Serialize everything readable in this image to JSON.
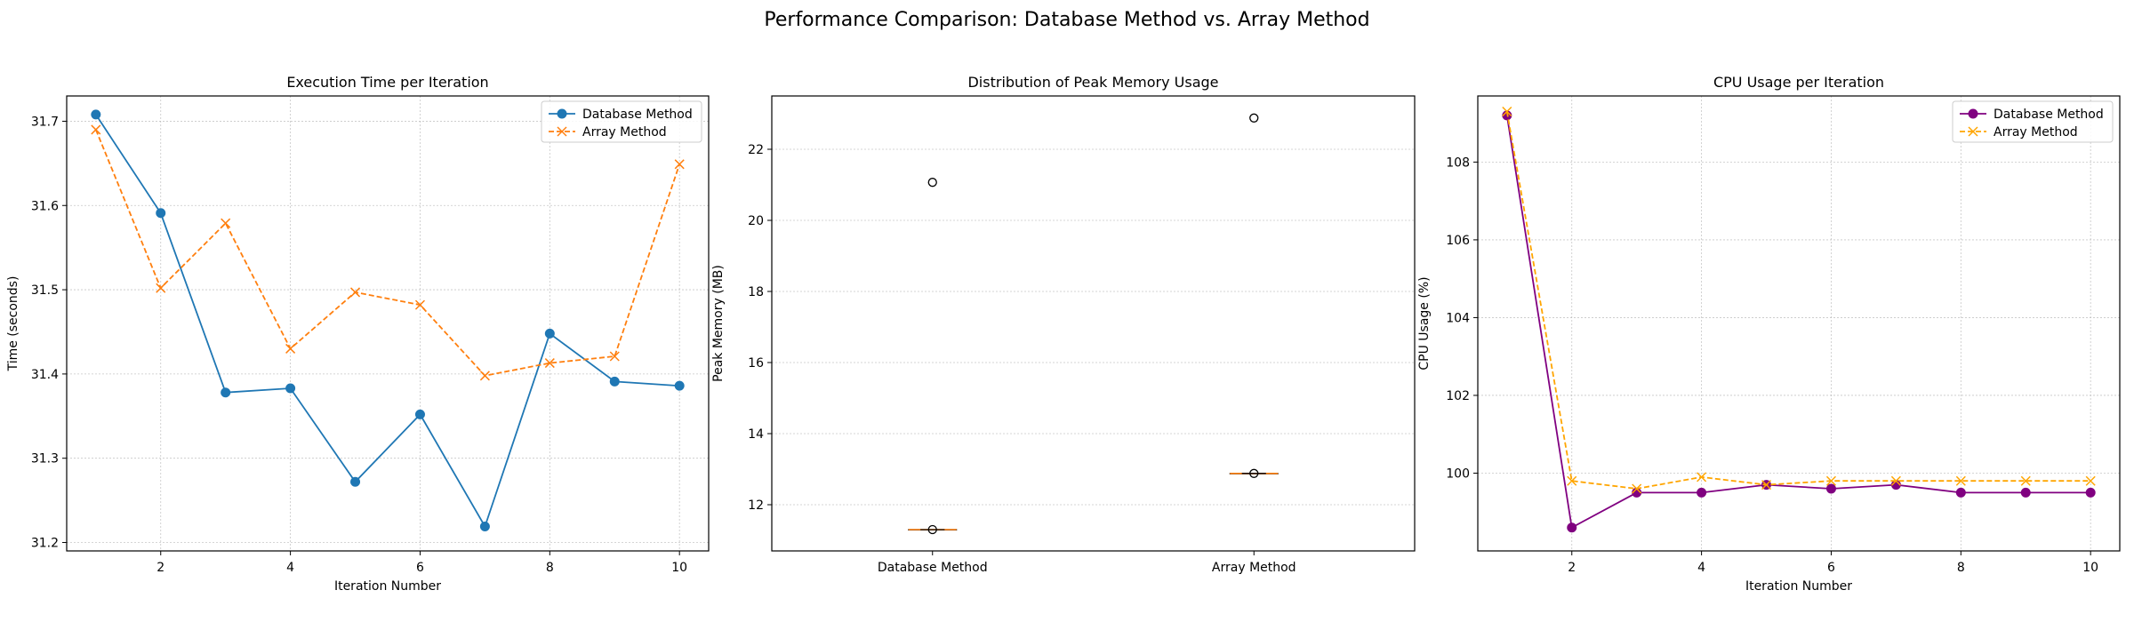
{
  "figure": {
    "suptitle": "Performance Comparison: Database Method vs. Array Method"
  },
  "chart_data": [
    {
      "type": "line",
      "title": "Execution Time per Iteration",
      "xlabel": "Iteration Number",
      "ylabel": "Time (seconds)",
      "xlim": [
        0.55,
        10.45
      ],
      "ylim": [
        31.19,
        31.73
      ],
      "xticks": [
        2,
        4,
        6,
        8,
        10
      ],
      "yticks": [
        31.2,
        31.3,
        31.4,
        31.5,
        31.6,
        31.7
      ],
      "ytick_format": 1,
      "grid": true,
      "legend": "upper right",
      "x": [
        1,
        2,
        3,
        4,
        5,
        6,
        7,
        8,
        9,
        10
      ],
      "series": [
        {
          "name": "Database Method",
          "color": "#1f77b4",
          "marker": "circle",
          "dash": "solid",
          "values": [
            31.708,
            31.591,
            31.378,
            31.383,
            31.272,
            31.352,
            31.219,
            31.448,
            31.391,
            31.386
          ]
        },
        {
          "name": "Array Method",
          "color": "#ff7f0e",
          "marker": "x",
          "dash": "dashed",
          "values": [
            31.69,
            31.502,
            31.579,
            31.43,
            31.497,
            31.482,
            31.398,
            31.413,
            31.421,
            31.649
          ]
        }
      ]
    },
    {
      "type": "box",
      "title": "Distribution of Peak Memory Usage",
      "xlabel": "",
      "ylabel": "Peak Memory (MB)",
      "ylim": [
        10.7,
        23.5
      ],
      "yticks": [
        12,
        14,
        16,
        18,
        20,
        22
      ],
      "ytick_format": 0,
      "grid": true,
      "categories": [
        "Database Method",
        "Array Method"
      ],
      "boxes": [
        {
          "q1": 11.3,
          "median": 11.3,
          "q3": 11.3,
          "whislo": 11.3,
          "whishi": 11.3,
          "fliers": [
            21.07
          ]
        },
        {
          "q1": 12.88,
          "median": 12.88,
          "q3": 12.88,
          "whislo": 12.88,
          "whishi": 12.88,
          "fliers": [
            22.88
          ]
        }
      ],
      "median_color": "#ff7f0e"
    },
    {
      "type": "line",
      "title": "CPU Usage per Iteration",
      "xlabel": "Iteration Number",
      "ylabel": "CPU Usage (%)",
      "xlim": [
        0.55,
        10.45
      ],
      "ylim": [
        98.0,
        109.7
      ],
      "xticks": [
        2,
        4,
        6,
        8,
        10
      ],
      "yticks": [
        100,
        102,
        104,
        106,
        108
      ],
      "ytick_format": 0,
      "grid": true,
      "legend": "upper right",
      "x": [
        1,
        2,
        3,
        4,
        5,
        6,
        7,
        8,
        9,
        10
      ],
      "series": [
        {
          "name": "Database Method",
          "color": "#800080",
          "marker": "circle",
          "dash": "solid",
          "values": [
            109.2,
            98.6,
            99.5,
            99.5,
            99.7,
            99.6,
            99.7,
            99.5,
            99.5,
            99.5
          ]
        },
        {
          "name": "Array Method",
          "color": "#ffa500",
          "marker": "x",
          "dash": "dashed",
          "values": [
            109.3,
            99.8,
            99.6,
            99.9,
            99.7,
            99.8,
            99.8,
            99.8,
            99.8,
            99.8
          ]
        }
      ]
    }
  ]
}
